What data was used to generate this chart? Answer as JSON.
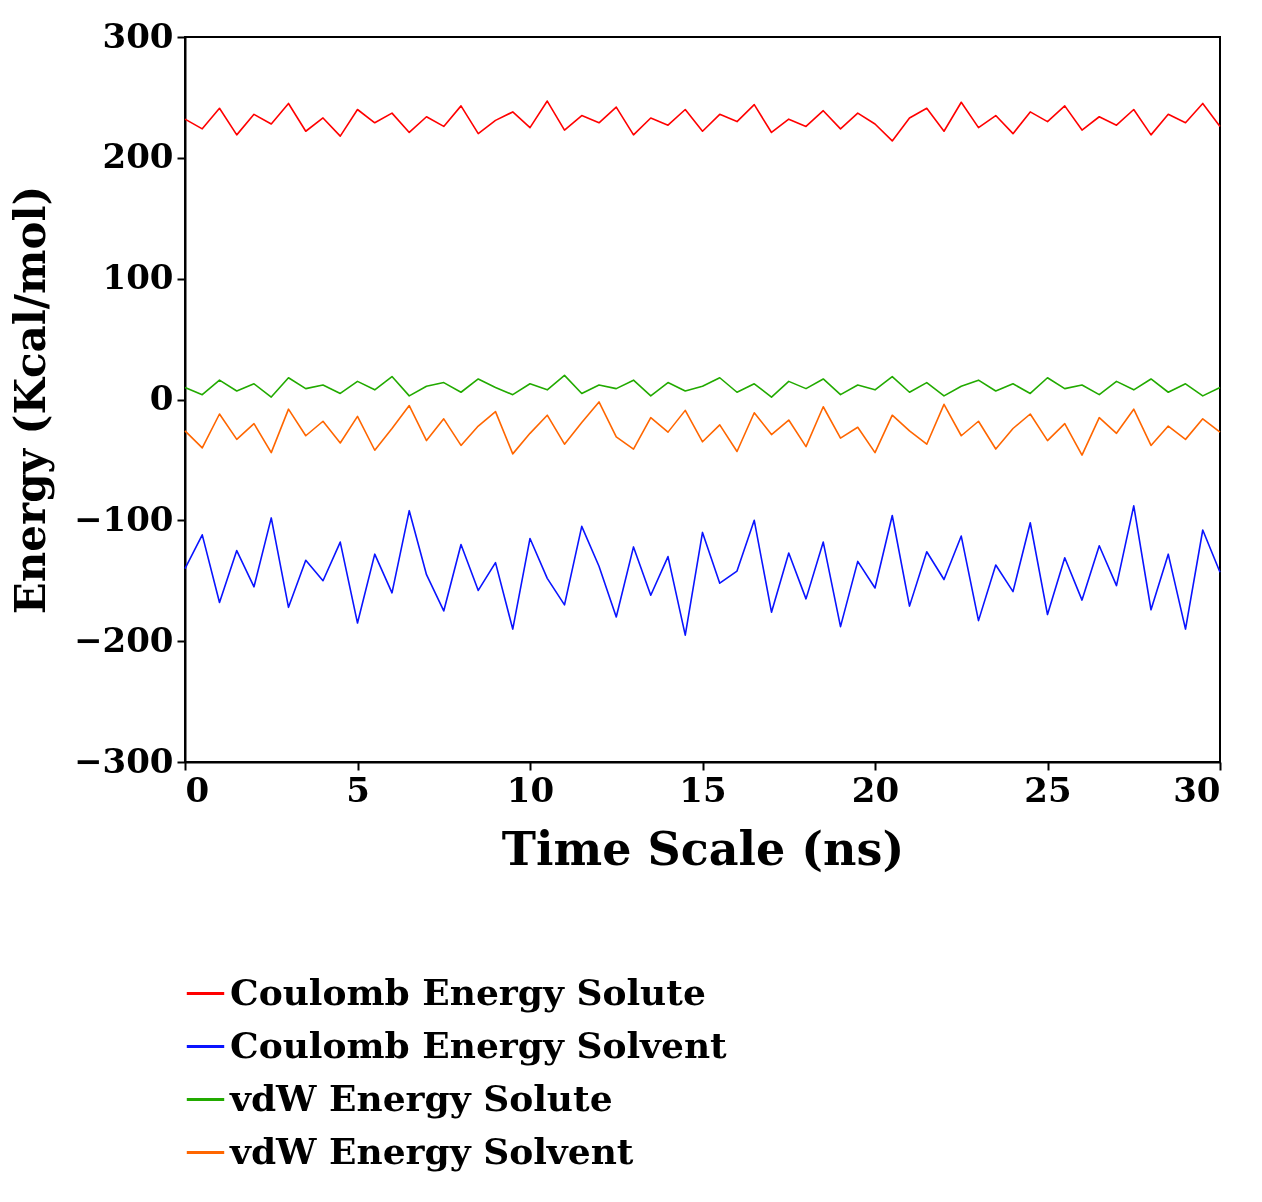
{
  "chart_data": {
    "type": "line",
    "xlabel": "Time Scale (ns)",
    "ylabel": "Energy (Kcal/mol)",
    "x": [
      0,
      0.5,
      1,
      1.5,
      2,
      2.5,
      3,
      3.5,
      4,
      4.5,
      5,
      5.5,
      6,
      6.5,
      7,
      7.5,
      8,
      8.5,
      9,
      9.5,
      10,
      10.5,
      11,
      11.5,
      12,
      12.5,
      13,
      13.5,
      14,
      14.5,
      15,
      15.5,
      16,
      16.5,
      17,
      17.5,
      18,
      18.5,
      19,
      19.5,
      20,
      20.5,
      21,
      21.5,
      22,
      22.5,
      23,
      23.5,
      24,
      24.5,
      25,
      25.5,
      26,
      26.5,
      27,
      27.5,
      28,
      28.5,
      29,
      29.5,
      30
    ],
    "series": [
      {
        "name": "Coulomb Energy Solute",
        "color": "#ff0000",
        "values": [
          232,
          224,
          241,
          219,
          236,
          228,
          245,
          222,
          233,
          218,
          240,
          229,
          237,
          221,
          234,
          226,
          243,
          220,
          231,
          238,
          225,
          247,
          223,
          235,
          229,
          242,
          219,
          233,
          227,
          240,
          222,
          236,
          230,
          244,
          221,
          232,
          226,
          239,
          224,
          237,
          228,
          214,
          233,
          241,
          222,
          246,
          225,
          235,
          220,
          238,
          230,
          243,
          223,
          234,
          227,
          240,
          219,
          236,
          229,
          245,
          226
        ]
      },
      {
        "name": "Coulomb Energy Solvent",
        "color": "#0a14ff",
        "values": [
          -140,
          -112,
          -168,
          -125,
          -155,
          -98,
          -172,
          -133,
          -150,
          -118,
          -185,
          -128,
          -160,
          -92,
          -145,
          -175,
          -120,
          -158,
          -135,
          -190,
          -115,
          -148,
          -170,
          -105,
          -138,
          -180,
          -122,
          -162,
          -130,
          -195,
          -110,
          -152,
          -142,
          -100,
          -176,
          -127,
          -165,
          -118,
          -188,
          -134,
          -156,
          -96,
          -171,
          -126,
          -149,
          -113,
          -183,
          -137,
          -159,
          -102,
          -178,
          -131,
          -166,
          -121,
          -154,
          -88,
          -174,
          -128,
          -190,
          -108,
          -143
        ]
      },
      {
        "name": "vdW Energy Solute",
        "color": "#22aa00",
        "values": [
          10,
          4,
          16,
          7,
          13,
          2,
          18,
          9,
          12,
          5,
          15,
          8,
          19,
          3,
          11,
          14,
          6,
          17,
          10,
          4,
          13,
          8,
          20,
          5,
          12,
          9,
          16,
          3,
          14,
          7,
          11,
          18,
          6,
          13,
          2,
          15,
          9,
          17,
          4,
          12,
          8,
          19,
          6,
          14,
          3,
          11,
          16,
          7,
          13,
          5,
          18,
          9,
          12,
          4,
          15,
          8,
          17,
          6,
          13,
          3,
          10
        ]
      },
      {
        "name": "vdW Energy Solvent",
        "color": "#ff6600",
        "values": [
          -26,
          -40,
          -12,
          -33,
          -20,
          -44,
          -8,
          -30,
          -18,
          -36,
          -14,
          -42,
          -24,
          -5,
          -34,
          -16,
          -38,
          -22,
          -10,
          -45,
          -28,
          -13,
          -37,
          -19,
          -2,
          -31,
          -41,
          -15,
          -27,
          -9,
          -35,
          -21,
          -43,
          -11,
          -29,
          -17,
          -39,
          -6,
          -32,
          -23,
          -44,
          -13,
          -26,
          -37,
          -4,
          -30,
          -18,
          -41,
          -24,
          -12,
          -34,
          -20,
          -46,
          -15,
          -28,
          -8,
          -38,
          -22,
          -33,
          -16,
          -27
        ]
      }
    ],
    "xlim": [
      0,
      30
    ],
    "xticks": [
      0,
      5,
      10,
      15,
      20,
      25,
      30
    ],
    "ylim": [
      -300,
      300
    ],
    "yticks": [
      -300,
      -200,
      -100,
      0,
      100,
      200,
      300
    ],
    "grid": false,
    "legend": "bottom",
    "marker": "none",
    "line_style": "solid"
  }
}
